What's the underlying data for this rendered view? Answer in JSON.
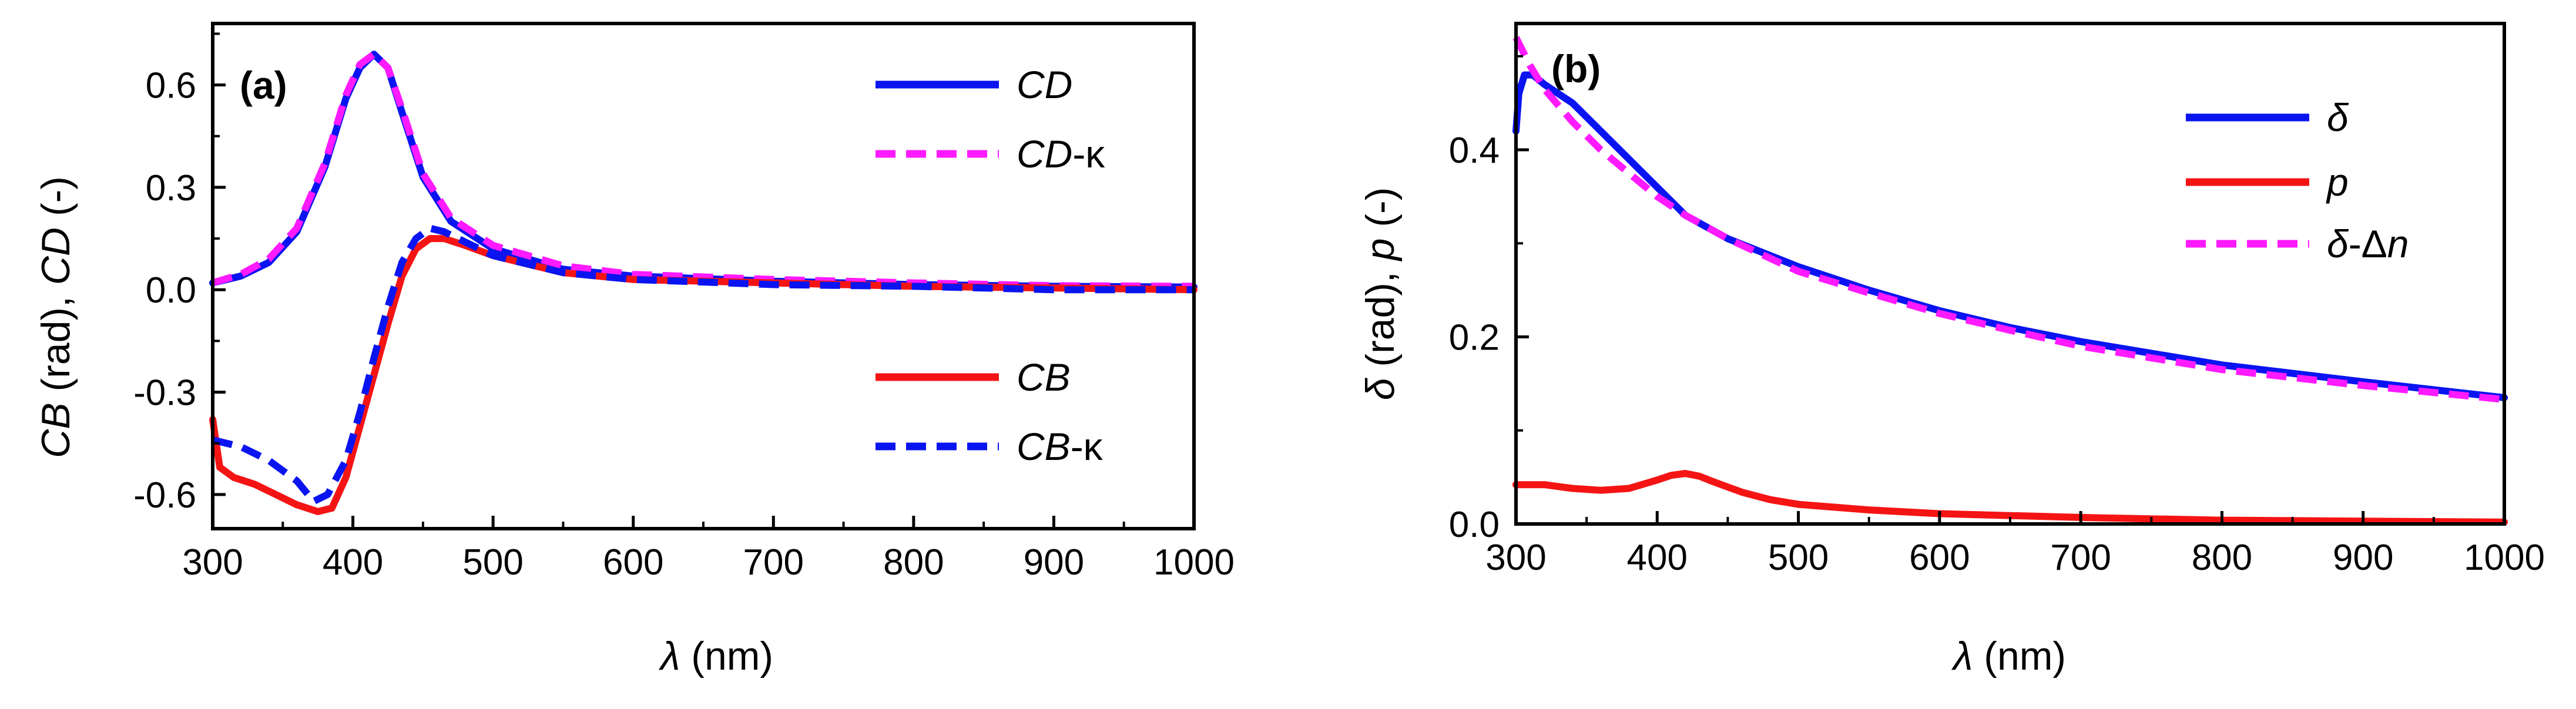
{
  "colors": {
    "blue": "#0a14f0",
    "red": "#f51414",
    "magenta": "#ff1aff",
    "axis": "#000000"
  },
  "panels": [
    {
      "id": "a",
      "tag": "(a)",
      "xlabel": {
        "sym": "λ",
        "unit": " (nm)"
      },
      "ylabel": {
        "p1": "CB",
        "p2": " (rad),  ",
        "p3": "CD",
        "p4": " (-)"
      },
      "legend_top": [
        {
          "label": "CD",
          "suffix": "",
          "color": "blue",
          "dash": false
        },
        {
          "label": "CD",
          "suffix": "-κ",
          "color": "magenta",
          "dash": true
        }
      ],
      "legend_bottom": [
        {
          "label": "CB",
          "suffix": "",
          "color": "red",
          "dash": false
        },
        {
          "label": "CB",
          "suffix": "-κ",
          "color": "blue",
          "dash": true
        }
      ]
    },
    {
      "id": "b",
      "tag": "(b)",
      "xlabel": {
        "sym": "λ",
        "unit": " (nm)"
      },
      "ylabel": {
        "p1": "δ",
        "p2": " (rad),  ",
        "p3": "p",
        "p4": " (-)"
      },
      "legend": [
        {
          "pre": "",
          "label": "δ",
          "suffix": "",
          "color": "blue",
          "dash": false
        },
        {
          "pre": "",
          "label": "p",
          "suffix": "",
          "color": "red",
          "dash": false
        },
        {
          "pre": "δ",
          "label": "-Δ",
          "suffix": "n",
          "color": "magenta",
          "dash": true
        }
      ]
    }
  ],
  "chart_data": [
    {
      "type": "line",
      "title": "(a)",
      "xlabel": "λ (nm)",
      "ylabel": "CB (rad), CD (-)",
      "xlim": [
        300,
        1000
      ],
      "ylim": [
        -0.7,
        0.78
      ],
      "xticks": [
        300,
        400,
        500,
        600,
        700,
        800,
        900,
        1000
      ],
      "xtick_labels": [
        "300",
        "400",
        "500",
        "600",
        "700",
        "800",
        "900",
        "1000"
      ],
      "yticks": [
        -0.6,
        -0.3,
        0.0,
        0.3,
        0.6
      ],
      "ytick_labels": [
        "-0.6",
        "-0.3",
        "0.0",
        "0.3",
        "0.6"
      ],
      "series": [
        {
          "name": "CD",
          "color": "blue",
          "dash": false,
          "x": [
            300,
            320,
            340,
            360,
            380,
            395,
            405,
            415,
            425,
            435,
            450,
            470,
            500,
            550,
            600,
            700,
            800,
            900,
            1000
          ],
          "y": [
            0.02,
            0.04,
            0.08,
            0.17,
            0.36,
            0.56,
            0.65,
            0.69,
            0.65,
            0.52,
            0.33,
            0.2,
            0.12,
            0.06,
            0.04,
            0.025,
            0.015,
            0.01,
            0.008
          ]
        },
        {
          "name": "CD-κ",
          "color": "magenta",
          "dash": true,
          "x": [
            300,
            320,
            340,
            360,
            380,
            395,
            405,
            415,
            425,
            435,
            450,
            470,
            500,
            550,
            600,
            700,
            800,
            900,
            1000
          ],
          "y": [
            0.02,
            0.045,
            0.09,
            0.18,
            0.37,
            0.57,
            0.66,
            0.69,
            0.65,
            0.53,
            0.34,
            0.21,
            0.13,
            0.07,
            0.045,
            0.03,
            0.02,
            0.012,
            0.01
          ]
        },
        {
          "name": "CB",
          "color": "red",
          "dash": false,
          "x": [
            300,
            305,
            315,
            330,
            345,
            360,
            375,
            385,
            395,
            405,
            415,
            425,
            435,
            445,
            455,
            465,
            480,
            500,
            550,
            600,
            700,
            800,
            900,
            1000
          ],
          "y": [
            -0.38,
            -0.52,
            -0.55,
            -0.57,
            -0.6,
            -0.63,
            -0.65,
            -0.64,
            -0.55,
            -0.4,
            -0.25,
            -0.1,
            0.04,
            0.12,
            0.15,
            0.15,
            0.13,
            0.1,
            0.05,
            0.03,
            0.02,
            0.01,
            0.005,
            0.0
          ]
        },
        {
          "name": "CB-κ",
          "color": "blue",
          "dash": true,
          "x": [
            300,
            320,
            340,
            360,
            372,
            382,
            395,
            405,
            415,
            425,
            435,
            445,
            455,
            465,
            480,
            500,
            550,
            600,
            700,
            800,
            900,
            1000
          ],
          "y": [
            -0.44,
            -0.46,
            -0.5,
            -0.56,
            -0.62,
            -0.6,
            -0.5,
            -0.36,
            -0.2,
            -0.05,
            0.08,
            0.15,
            0.18,
            0.17,
            0.14,
            0.1,
            0.05,
            0.03,
            0.015,
            0.01,
            0.0,
            0.0
          ]
        }
      ]
    },
    {
      "type": "line",
      "title": "(b)",
      "xlabel": "λ (nm)",
      "ylabel": "δ (rad), p (-)",
      "xlim": [
        300,
        1000
      ],
      "ylim": [
        0.0,
        0.535
      ],
      "xticks": [
        300,
        400,
        500,
        600,
        700,
        800,
        900,
        1000
      ],
      "xtick_labels": [
        "300",
        "400",
        "500",
        "600",
        "700",
        "800",
        "900",
        "1000"
      ],
      "yticks": [
        0.0,
        0.2,
        0.4
      ],
      "ytick_labels": [
        "0.0",
        "0.2",
        "0.4"
      ],
      "series": [
        {
          "name": "δ",
          "color": "blue",
          "dash": false,
          "x": [
            300,
            302,
            306,
            312,
            320,
            340,
            360,
            380,
            400,
            420,
            450,
            500,
            550,
            600,
            650,
            700,
            800,
            900,
            1000
          ],
          "y": [
            0.42,
            0.46,
            0.48,
            0.48,
            0.47,
            0.45,
            0.42,
            0.39,
            0.36,
            0.33,
            0.305,
            0.275,
            0.25,
            0.228,
            0.21,
            0.195,
            0.17,
            0.152,
            0.135
          ]
        },
        {
          "name": "p",
          "color": "red",
          "dash": false,
          "x": [
            300,
            320,
            340,
            360,
            380,
            400,
            410,
            420,
            430,
            440,
            460,
            480,
            500,
            550,
            600,
            700,
            800,
            900,
            1000
          ],
          "y": [
            0.042,
            0.042,
            0.038,
            0.036,
            0.038,
            0.047,
            0.052,
            0.054,
            0.051,
            0.045,
            0.034,
            0.026,
            0.021,
            0.015,
            0.011,
            0.007,
            0.004,
            0.003,
            0.002
          ]
        },
        {
          "name": "δ-Δn",
          "color": "magenta",
          "dash": true,
          "x": [
            300,
            310,
            320,
            340,
            360,
            380,
            400,
            420,
            450,
            500,
            550,
            600,
            650,
            700,
            800,
            900,
            1000
          ],
          "y": [
            0.52,
            0.49,
            0.465,
            0.43,
            0.4,
            0.375,
            0.35,
            0.33,
            0.305,
            0.27,
            0.247,
            0.225,
            0.207,
            0.19,
            0.165,
            0.148,
            0.133
          ]
        }
      ]
    }
  ]
}
